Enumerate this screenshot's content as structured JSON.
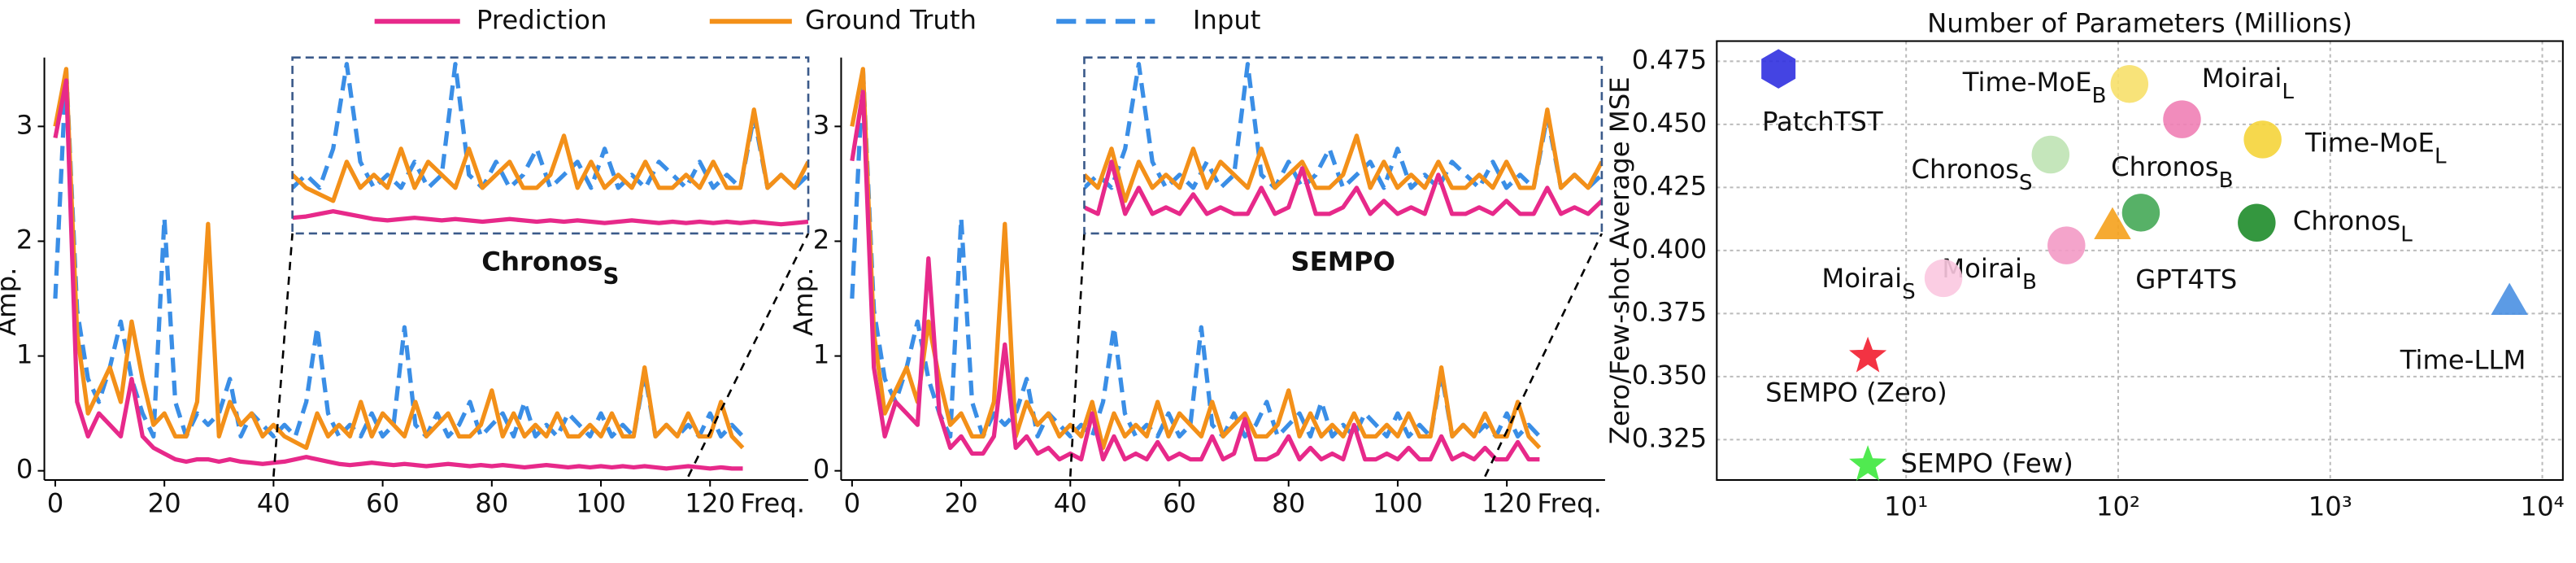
{
  "chart_data": [
    {
      "type": "line",
      "x": [
        0,
        2,
        4,
        6,
        8,
        10,
        12,
        14,
        16,
        18,
        20,
        22,
        24,
        26,
        28,
        30,
        32,
        34,
        36,
        38,
        40,
        42,
        44,
        46,
        48,
        50,
        52,
        54,
        56,
        58,
        60,
        62,
        64,
        66,
        68,
        70,
        72,
        74,
        76,
        78,
        80,
        82,
        84,
        86,
        88,
        90,
        92,
        94,
        96,
        98,
        100,
        102,
        104,
        106,
        108,
        110,
        112,
        114,
        116,
        118,
        120,
        122,
        124,
        126
      ],
      "series": [
        {
          "name": "Prediction",
          "color": "#e7298a",
          "style": "solid",
          "values": [
            2.9,
            3.4,
            0.6,
            0.3,
            0.5,
            0.4,
            0.3,
            0.8,
            0.3,
            0.2,
            0.15,
            0.1,
            0.08,
            0.1,
            0.1,
            0.08,
            0.1,
            0.08,
            0.07,
            0.06,
            0.07,
            0.08,
            0.1,
            0.12,
            0.1,
            0.08,
            0.06,
            0.05,
            0.06,
            0.07,
            0.06,
            0.05,
            0.06,
            0.05,
            0.04,
            0.05,
            0.06,
            0.05,
            0.04,
            0.05,
            0.04,
            0.05,
            0.04,
            0.03,
            0.04,
            0.05,
            0.04,
            0.03,
            0.04,
            0.03,
            0.04,
            0.03,
            0.04,
            0.03,
            0.04,
            0.03,
            0.02,
            0.03,
            0.04,
            0.03,
            0.02,
            0.03,
            0.02,
            0.02
          ]
        },
        {
          "name": "Ground Truth",
          "color": "#f39019",
          "style": "solid",
          "values": [
            3.0,
            3.5,
            1.2,
            0.5,
            0.7,
            0.9,
            0.6,
            1.3,
            0.8,
            0.4,
            0.5,
            0.3,
            0.3,
            0.6,
            2.15,
            0.3,
            0.6,
            0.4,
            0.5,
            0.3,
            0.4,
            0.3,
            0.25,
            0.2,
            0.5,
            0.3,
            0.4,
            0.3,
            0.6,
            0.3,
            0.5,
            0.4,
            0.3,
            0.6,
            0.3,
            0.4,
            0.5,
            0.3,
            0.3,
            0.4,
            0.7,
            0.3,
            0.5,
            0.3,
            0.4,
            0.3,
            0.5,
            0.3,
            0.3,
            0.4,
            0.3,
            0.5,
            0.3,
            0.3,
            0.9,
            0.3,
            0.4,
            0.3,
            0.5,
            0.3,
            0.3,
            0.6,
            0.3,
            0.2
          ]
        },
        {
          "name": "Input",
          "color": "#3a8ee6",
          "style": "dashed",
          "values": [
            1.5,
            3.5,
            1.4,
            0.8,
            0.6,
            0.9,
            1.3,
            0.8,
            0.5,
            0.3,
            2.2,
            0.6,
            0.3,
            0.5,
            0.4,
            0.5,
            0.8,
            0.3,
            0.5,
            0.4,
            0.3,
            0.4,
            0.3,
            0.6,
            1.25,
            0.5,
            0.3,
            0.4,
            0.3,
            0.5,
            0.3,
            0.4,
            1.25,
            0.4,
            0.3,
            0.5,
            0.3,
            0.4,
            0.6,
            0.3,
            0.4,
            0.5,
            0.3,
            0.6,
            0.3,
            0.4,
            0.3,
            0.5,
            0.4,
            0.3,
            0.5,
            0.3,
            0.4,
            0.3,
            0.85,
            0.3,
            0.4,
            0.3,
            0.4,
            0.3,
            0.5,
            0.3,
            0.4,
            0.3
          ]
        }
      ],
      "x_label": "Freq.",
      "y_label": "Amp.",
      "xlim": [
        -2,
        138
      ],
      "ylim": [
        -0.08,
        3.6
      ],
      "xticks": [
        0,
        20,
        40,
        60,
        80,
        100,
        120
      ],
      "yticks": [
        0,
        1,
        2,
        3
      ],
      "legend": "top",
      "inset": {
        "xlim": [
          40,
          116
        ],
        "ylim": [
          -0.05,
          1.3
        ],
        "label": "Chronos",
        "label_sub": "S"
      }
    },
    {
      "type": "line",
      "x": [
        0,
        2,
        4,
        6,
        8,
        10,
        12,
        14,
        16,
        18,
        20,
        22,
        24,
        26,
        28,
        30,
        32,
        34,
        36,
        38,
        40,
        42,
        44,
        46,
        48,
        50,
        52,
        54,
        56,
        58,
        60,
        62,
        64,
        66,
        68,
        70,
        72,
        74,
        76,
        78,
        80,
        82,
        84,
        86,
        88,
        90,
        92,
        94,
        96,
        98,
        100,
        102,
        104,
        106,
        108,
        110,
        112,
        114,
        116,
        118,
        120,
        122,
        124,
        126
      ],
      "series": [
        {
          "color": "#e7298a",
          "style": "solid",
          "values": [
            2.7,
            3.3,
            0.9,
            0.3,
            0.6,
            0.5,
            0.4,
            1.85,
            0.5,
            0.2,
            0.3,
            0.15,
            0.15,
            0.3,
            1.1,
            0.2,
            0.3,
            0.15,
            0.2,
            0.1,
            0.15,
            0.1,
            0.5,
            0.1,
            0.3,
            0.1,
            0.15,
            0.1,
            0.25,
            0.1,
            0.15,
            0.1,
            0.1,
            0.3,
            0.1,
            0.15,
            0.45,
            0.1,
            0.1,
            0.15,
            0.3,
            0.1,
            0.2,
            0.1,
            0.15,
            0.1,
            0.4,
            0.1,
            0.1,
            0.15,
            0.1,
            0.2,
            0.1,
            0.1,
            0.3,
            0.1,
            0.15,
            0.1,
            0.2,
            0.1,
            0.1,
            0.25,
            0.1,
            0.1
          ]
        },
        {
          "color": "#f39019",
          "style": "solid",
          "values": [
            3.0,
            3.5,
            1.2,
            0.5,
            0.7,
            0.9,
            0.6,
            1.3,
            0.8,
            0.4,
            0.5,
            0.3,
            0.3,
            0.6,
            2.15,
            0.3,
            0.6,
            0.4,
            0.5,
            0.3,
            0.4,
            0.3,
            0.6,
            0.2,
            0.5,
            0.3,
            0.4,
            0.3,
            0.6,
            0.3,
            0.5,
            0.4,
            0.3,
            0.6,
            0.3,
            0.4,
            0.5,
            0.3,
            0.3,
            0.4,
            0.7,
            0.3,
            0.5,
            0.3,
            0.4,
            0.3,
            0.5,
            0.3,
            0.3,
            0.4,
            0.3,
            0.5,
            0.3,
            0.3,
            0.9,
            0.3,
            0.4,
            0.3,
            0.5,
            0.3,
            0.3,
            0.6,
            0.3,
            0.2
          ]
        },
        {
          "color": "#3a8ee6",
          "style": "dashed",
          "values": [
            1.5,
            3.5,
            1.4,
            0.8,
            0.6,
            0.9,
            1.3,
            0.8,
            0.5,
            0.3,
            2.2,
            0.6,
            0.3,
            0.5,
            0.4,
            0.5,
            0.8,
            0.3,
            0.5,
            0.4,
            0.3,
            0.4,
            0.3,
            0.6,
            1.25,
            0.5,
            0.3,
            0.4,
            0.3,
            0.5,
            0.3,
            0.4,
            1.25,
            0.4,
            0.3,
            0.5,
            0.3,
            0.4,
            0.6,
            0.3,
            0.4,
            0.5,
            0.3,
            0.6,
            0.3,
            0.4,
            0.3,
            0.5,
            0.4,
            0.3,
            0.5,
            0.3,
            0.4,
            0.3,
            0.85,
            0.3,
            0.4,
            0.3,
            0.4,
            0.3,
            0.5,
            0.3,
            0.4,
            0.3
          ]
        }
      ],
      "x_label": "Freq.",
      "y_label": "Amp.",
      "xlim": [
        -2,
        138
      ],
      "ylim": [
        -0.08,
        3.6
      ],
      "xticks": [
        0,
        20,
        40,
        60,
        80,
        100,
        120
      ],
      "yticks": [
        0,
        1,
        2,
        3
      ],
      "inset": {
        "xlim": [
          40,
          116
        ],
        "ylim": [
          -0.05,
          1.3
        ],
        "label": "SEMPO"
      }
    },
    {
      "type": "scatter",
      "title": "Number of Parameters (Millions)",
      "y_label": "Zero/Few-shot Average MSE",
      "log_x": true,
      "grid": true,
      "xlim": [
        1.28,
        12500
      ],
      "ylim": [
        0.309,
        0.483
      ],
      "xticks": [
        {
          "value": 10,
          "label": "10¹"
        },
        {
          "value": 100,
          "label": "10²"
        },
        {
          "value": 1000,
          "label": "10³"
        },
        {
          "value": 10000,
          "label": "10⁴"
        }
      ],
      "yticks": [
        0.325,
        {
          "value": 0.35,
          "label": "0.350"
        },
        0.375,
        {
          "value": 0.4,
          "label": "0.400"
        },
        0.425,
        {
          "value": 0.45,
          "label": "0.450"
        },
        0.475
      ],
      "points": [
        {
          "label": "PatchTST",
          "x": 2.5,
          "y": 0.472,
          "color": "#3030e0",
          "marker": "hexagon"
        },
        {
          "label": "Time-MoE",
          "label_sub": "B",
          "x": 113,
          "y": 0.466,
          "color": "#f7e06a",
          "marker": "circle"
        },
        {
          "label": "Moirai",
          "label_sub": "L",
          "x": 200,
          "y": 0.452,
          "color": "#ef7fb5",
          "marker": "circle"
        },
        {
          "label": "Time-MoE",
          "label_sub": "L",
          "x": 480,
          "y": 0.444,
          "color": "#f5d43a",
          "marker": "circle"
        },
        {
          "label": "Chronos",
          "label_sub": "S",
          "x": 48,
          "y": 0.438,
          "color": "#bfe3b4",
          "marker": "circle"
        },
        {
          "label": "Chronos",
          "label_sub": "B",
          "x": 128,
          "y": 0.415,
          "color": "#45a857",
          "marker": "circle"
        },
        {
          "label": "GPT4TS",
          "x": 94,
          "y": 0.41,
          "color": "#f5a11c",
          "marker": "triangle"
        },
        {
          "label": "Chronos",
          "label_sub": "L",
          "x": 450,
          "y": 0.411,
          "color": "#1e8c2a",
          "marker": "circle"
        },
        {
          "label": "Moirai",
          "label_sub": "B",
          "x": 57,
          "y": 0.402,
          "color": "#f39ac5",
          "marker": "circle"
        },
        {
          "label": "Moirai",
          "label_sub": "S",
          "x": 15,
          "y": 0.389,
          "color": "#fbc8e0",
          "marker": "circle"
        },
        {
          "label": "Time-LLM",
          "x": 7000,
          "y": 0.38,
          "color": "#4a90e2",
          "marker": "triangle"
        },
        {
          "label": "SEMPO (Zero)",
          "x": 6.6,
          "y": 0.358,
          "color": "#f21d2f",
          "marker": "star"
        },
        {
          "label": "SEMPO (Few)",
          "x": 6.6,
          "y": 0.315,
          "color": "#3de83d",
          "marker": "star"
        }
      ]
    }
  ]
}
